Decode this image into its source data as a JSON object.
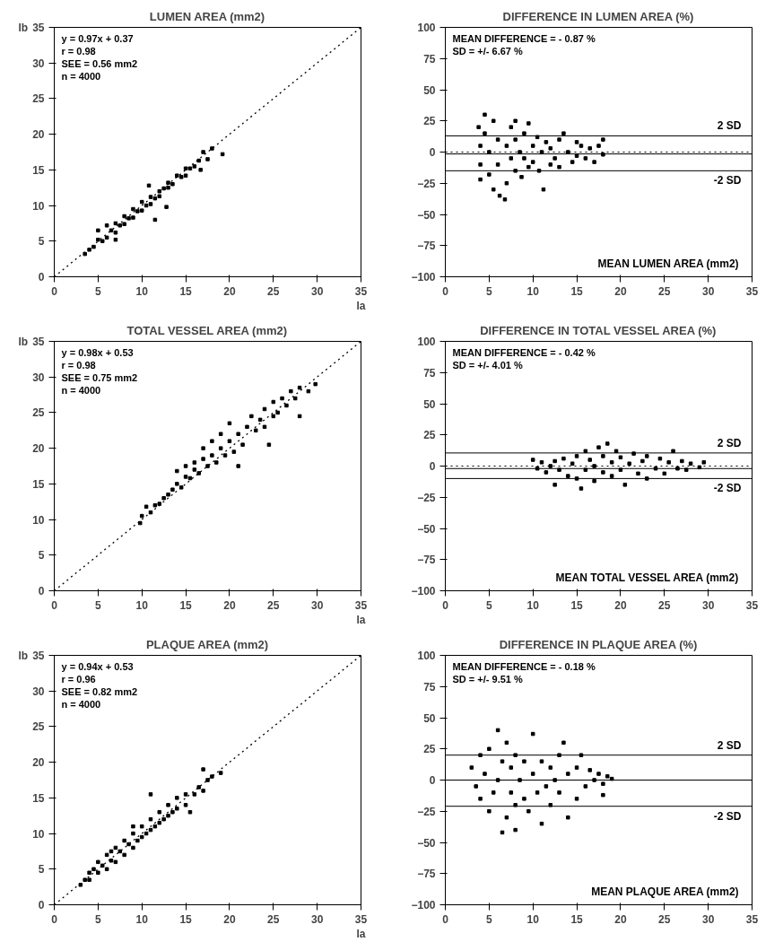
{
  "chart_data": [
    {
      "type": "scatter",
      "title": "LUMEN AREA (mm2)",
      "xlabel": "la",
      "ylabel": "lb",
      "annotations": [
        "y = 0.97x + 0.37",
        "r = 0.98",
        "SEE = 0.56 mm2",
        "n = 4000"
      ],
      "xlim": [
        0,
        35
      ],
      "ylim": [
        0,
        35
      ],
      "xticks": [
        0,
        5,
        10,
        15,
        20,
        25,
        30,
        35
      ],
      "yticks": [
        0,
        5,
        10,
        15,
        20,
        25,
        30,
        35
      ],
      "series": [
        {
          "marker": "square",
          "color": "#000000",
          "x": [
            3.5,
            4,
            4.5,
            5,
            5,
            5.5,
            6,
            6,
            6.5,
            7,
            7,
            7.5,
            8,
            8,
            8.5,
            9,
            9,
            9.5,
            10,
            10,
            10.5,
            11,
            11,
            11.5,
            12,
            12,
            12.5,
            13,
            13,
            13.5,
            14,
            14.5,
            15,
            15,
            15.5,
            16,
            16.5,
            17,
            17.5,
            18,
            19.2,
            10.8,
            7,
            12.8,
            11.5,
            16.7
          ],
          "values": [
            3.2,
            3.8,
            4.2,
            5.2,
            6.5,
            5,
            7.2,
            5.5,
            6.5,
            7.5,
            6.2,
            7.2,
            8.5,
            7.4,
            8.2,
            9.5,
            8.3,
            9.2,
            10.5,
            9.3,
            10,
            11.2,
            10.2,
            11,
            12,
            11.3,
            12.4,
            13.2,
            12.5,
            13,
            14.2,
            14,
            15.2,
            14.2,
            15.2,
            15.5,
            16.3,
            17.5,
            16.5,
            18,
            17.2,
            12.8,
            5.2,
            9.8,
            8,
            15
          ]
        },
        {
          "type": "line",
          "color": "#000000",
          "line_style": "dotted",
          "x": [
            0,
            35
          ],
          "values": [
            0,
            35
          ]
        }
      ]
    },
    {
      "type": "scatter",
      "title": "DIFFERENCE IN LUMEN AREA (%)",
      "xlabel": "MEAN LUMEN AREA (mm2)",
      "annotations": [
        "MEAN DIFFERENCE = - 0.87 %",
        "SD = +/-  6.67 %"
      ],
      "xlim": [
        0,
        35
      ],
      "ylim": [
        -100,
        100
      ],
      "xticks": [
        0,
        5,
        10,
        15,
        20,
        25,
        30,
        35
      ],
      "yticks": [
        -100,
        -75,
        -50,
        -25,
        0,
        25,
        50,
        75,
        100
      ],
      "series": [
        {
          "marker": "square",
          "color": "#000000",
          "x": [
            3.8,
            4,
            4,
            4,
            4.5,
            4.5,
            5,
            5,
            5.5,
            5.5,
            6,
            6,
            6.2,
            6.8,
            7,
            7,
            7.5,
            7.5,
            8,
            8,
            8.5,
            8.7,
            9,
            9,
            9.5,
            10,
            10,
            10.5,
            10.7,
            11,
            11.2,
            11.5,
            12,
            12,
            12.5,
            13,
            13,
            13.5,
            14,
            14.5,
            15,
            15,
            15.5,
            16,
            16.5,
            17,
            17.5,
            18,
            18,
            9.5,
            8
          ],
          "values": [
            20,
            5,
            -10,
            -22,
            30,
            15,
            0,
            -18,
            -30,
            25,
            10,
            -10,
            -35,
            -38,
            -25,
            5,
            20,
            -5,
            -15,
            10,
            0,
            -20,
            15,
            -5,
            -12,
            5,
            -8,
            12,
            -15,
            0,
            -30,
            8,
            -10,
            3,
            -5,
            10,
            -12,
            15,
            0,
            -8,
            8,
            -3,
            5,
            -5,
            3,
            -8,
            5,
            -2,
            10,
            23,
            25
          ]
        }
      ],
      "ref_lines": [
        {
          "axis": "y",
          "value": 0,
          "line_style": "dotted"
        },
        {
          "axis": "y",
          "value": -1.5,
          "line_style": "solid"
        },
        {
          "axis": "y",
          "value": 13,
          "label": "2 SD"
        },
        {
          "axis": "y",
          "value": -15,
          "label": "-2 SD"
        }
      ]
    },
    {
      "type": "scatter",
      "title": "TOTAL VESSEL AREA (mm2)",
      "xlabel": "la",
      "ylabel": "lb",
      "annotations": [
        "y = 0.98x + 0.53",
        "r = 0.98",
        "SEE = 0.75 mm2",
        "n = 4000"
      ],
      "xlim": [
        0,
        35
      ],
      "ylim": [
        0,
        35
      ],
      "xticks": [
        0,
        5,
        10,
        15,
        20,
        25,
        30,
        35
      ],
      "yticks": [
        0,
        5,
        10,
        15,
        20,
        25,
        30,
        35
      ],
      "series": [
        {
          "marker": "square",
          "color": "#000000",
          "x": [
            9.8,
            10,
            10.5,
            11,
            11.5,
            12,
            12.5,
            13,
            13.5,
            14,
            14,
            14.5,
            15,
            15,
            15.5,
            16,
            16,
            16.5,
            17,
            17,
            17.5,
            18,
            18,
            18.5,
            19,
            19,
            19.5,
            20,
            20,
            20.5,
            21,
            21.5,
            22,
            22.5,
            23,
            23.5,
            24,
            24,
            25,
            25,
            25.5,
            26,
            26.5,
            27,
            27.5,
            28,
            29,
            29.8,
            24.5,
            21,
            28
          ],
          "values": [
            9.5,
            10.5,
            11.8,
            11,
            12,
            12.2,
            13,
            13.5,
            14.2,
            16.8,
            15,
            14.5,
            16,
            17.5,
            15.8,
            17,
            18,
            16.5,
            18.5,
            20,
            17.5,
            19,
            21,
            18,
            20,
            22,
            19,
            21,
            23.5,
            19.5,
            22,
            20.5,
            23,
            24.5,
            22.5,
            24,
            25.5,
            23,
            26.5,
            24.5,
            25,
            27,
            26,
            28,
            27,
            28.5,
            28,
            29,
            20.5,
            17.5,
            24.5
          ]
        },
        {
          "type": "line",
          "color": "#000000",
          "line_style": "dotted",
          "x": [
            0,
            35
          ],
          "values": [
            0,
            35
          ]
        }
      ]
    },
    {
      "type": "scatter",
      "title": "DIFFERENCE IN TOTAL VESSEL AREA (%)",
      "xlabel": "MEAN TOTAL VESSEL AREA (mm2)",
      "annotations": [
        "MEAN DIFFERENCE = - 0.42 %",
        "SD = +/-  4.01 %"
      ],
      "xlim": [
        0,
        35
      ],
      "ylim": [
        -100,
        100
      ],
      "xticks": [
        0,
        5,
        10,
        15,
        20,
        25,
        30,
        35
      ],
      "yticks": [
        -100,
        -75,
        -50,
        -25,
        0,
        25,
        50,
        75,
        100
      ],
      "series": [
        {
          "marker": "square",
          "color": "#000000",
          "x": [
            10,
            10.5,
            11,
            11.5,
            12,
            12.5,
            12.5,
            13,
            13.5,
            14,
            14.5,
            15,
            15,
            15.5,
            16,
            16,
            16.5,
            17,
            17,
            17.5,
            18,
            18,
            18.5,
            19,
            19,
            19.5,
            20,
            20,
            20.5,
            21,
            21.5,
            22,
            22.5,
            23,
            23,
            24,
            24.5,
            25,
            25.5,
            26,
            26.5,
            27,
            27.5,
            28,
            29,
            29.5
          ],
          "values": [
            5,
            -2,
            3,
            -5,
            0,
            -15,
            4,
            -3,
            6,
            -8,
            2,
            -10,
            8,
            -18,
            -3,
            12,
            5,
            -12,
            0,
            15,
            -5,
            8,
            18,
            -8,
            3,
            12,
            -3,
            7,
            -15,
            2,
            10,
            -6,
            4,
            -10,
            8,
            -2,
            6,
            -6,
            3,
            12,
            -2,
            4,
            -3,
            2,
            -1,
            3
          ]
        }
      ],
      "ref_lines": [
        {
          "axis": "y",
          "value": 0,
          "line_style": "dotted"
        },
        {
          "axis": "y",
          "value": -2,
          "line_style": "solid"
        },
        {
          "axis": "y",
          "value": 10.5,
          "label": "2 SD"
        },
        {
          "axis": "y",
          "value": -10,
          "label": "-2 SD"
        }
      ]
    },
    {
      "type": "scatter",
      "title": "PLAQUE AREA (mm2)",
      "xlabel": "la",
      "ylabel": "lb",
      "annotations": [
        "y = 0.94x + 0.53",
        "r = 0.96",
        "SEE = 0.82 mm2",
        "n = 4000"
      ],
      "xlim": [
        0,
        35
      ],
      "ylim": [
        0,
        35
      ],
      "xticks": [
        0,
        5,
        10,
        15,
        20,
        25,
        30,
        35
      ],
      "yticks": [
        0,
        5,
        10,
        15,
        20,
        25,
        30,
        35
      ],
      "series": [
        {
          "marker": "square",
          "color": "#000000",
          "x": [
            3,
            3.5,
            4,
            4,
            4.5,
            5,
            5,
            5.5,
            6,
            6,
            6.5,
            7,
            7,
            7.5,
            8,
            8,
            8.5,
            9,
            9,
            9.5,
            10,
            10,
            10.5,
            11,
            11,
            11.5,
            12,
            12,
            12.5,
            13,
            13,
            13.5,
            14,
            14,
            15,
            15,
            16,
            16.5,
            17,
            17.5,
            18,
            19,
            17,
            11,
            9,
            6.5,
            15.5
          ],
          "values": [
            2.8,
            3.5,
            3.5,
            4.5,
            5,
            4.5,
            6,
            5.5,
            5,
            7,
            6.2,
            6,
            8,
            7.5,
            7,
            9,
            8.5,
            8,
            10,
            9,
            9.5,
            11,
            10,
            10.5,
            12,
            11,
            11.5,
            13,
            12,
            12.5,
            14,
            13,
            13.5,
            15,
            14,
            15.5,
            15.5,
            16.5,
            16,
            17.5,
            18,
            18.5,
            19,
            15.5,
            11,
            7.5,
            13
          ]
        },
        {
          "type": "line",
          "color": "#000000",
          "line_style": "dotted",
          "x": [
            0,
            35
          ],
          "values": [
            0,
            35
          ]
        }
      ]
    },
    {
      "type": "scatter",
      "title": "DIFFERENCE IN PLAQUE AREA (%)",
      "xlabel": "MEAN PLAQUE AREA (mm2)",
      "annotations": [
        "MEAN DIFFERENCE = - 0.18 %",
        "SD = +/-  9.51 %"
      ],
      "xlim": [
        0,
        35
      ],
      "ylim": [
        -100,
        100
      ],
      "xticks": [
        0,
        5,
        10,
        15,
        20,
        25,
        30,
        35
      ],
      "yticks": [
        -100,
        -75,
        -50,
        -25,
        0,
        25,
        50,
        75,
        100
      ],
      "series": [
        {
          "marker": "square",
          "color": "#000000",
          "x": [
            3,
            3.5,
            4,
            4,
            4.5,
            5,
            5,
            5.5,
            6,
            6,
            6.5,
            6.5,
            7,
            7,
            7.5,
            7.5,
            8,
            8,
            8,
            8.5,
            9,
            9,
            9.5,
            10,
            10,
            10.5,
            11,
            11,
            11.5,
            12,
            12,
            12.5,
            13,
            13,
            13.5,
            14,
            14,
            15,
            15,
            15.5,
            16,
            16.5,
            17,
            17.5,
            18,
            18,
            18.5,
            19
          ],
          "values": [
            10,
            -5,
            20,
            -15,
            5,
            25,
            -25,
            -10,
            40,
            0,
            -42,
            15,
            -30,
            30,
            -10,
            10,
            -40,
            -20,
            20,
            0,
            -15,
            15,
            -25,
            37,
            5,
            -10,
            -35,
            15,
            -5,
            10,
            -20,
            0,
            -10,
            20,
            30,
            -30,
            5,
            -15,
            10,
            20,
            -5,
            8,
            0,
            5,
            -3,
            -12,
            3,
            1
          ]
        }
      ],
      "ref_lines": [
        {
          "axis": "y",
          "value": 0,
          "line_style": "solid"
        },
        {
          "axis": "y",
          "value": 20,
          "label": "2 SD"
        },
        {
          "axis": "y",
          "value": -21,
          "label": "-2 SD"
        }
      ]
    }
  ]
}
